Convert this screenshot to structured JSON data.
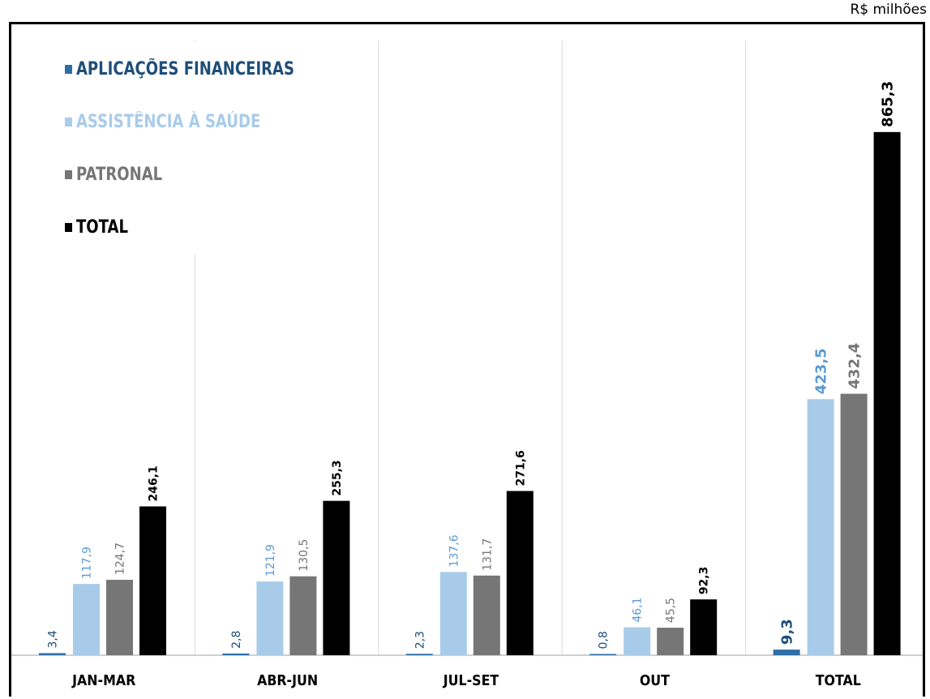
{
  "unit_label": "R$ milhões",
  "colors": {
    "aplicacoes": "#2e6ea6",
    "assistencia": "#a9cbea",
    "patronal": "#767676",
    "total": "#000000",
    "aplicacoes_text": "#1f4e79",
    "assistencia_text": "#5b9bd5",
    "patronal_text": "#767676",
    "total_text": "#000000"
  },
  "legend": [
    {
      "label": "APLICAÇÕES FINANCEIRAS",
      "color": "#1f4e79"
    },
    {
      "label": "ASSISTÊNCIA À SAÚDE",
      "color": "#a9cbea"
    },
    {
      "label": "PATRONAL",
      "color": "#767676"
    },
    {
      "label": "TOTAL",
      "color": "#000000"
    }
  ],
  "chart_data": {
    "type": "bar",
    "categories": [
      "JAN-MAR",
      "ABR-JUN",
      "JUL-SET",
      "OUT",
      "TOTAL"
    ],
    "series": [
      {
        "name": "APLICAÇÕES FINANCEIRAS",
        "values": [
          3.4,
          2.8,
          2.3,
          0.8,
          9.3
        ],
        "labels": [
          "3,4",
          "2,8",
          "2,3",
          "0,8",
          "9,3"
        ]
      },
      {
        "name": "ASSISTÊNCIA À SAÚDE",
        "values": [
          117.9,
          121.9,
          137.6,
          46.1,
          423.5
        ],
        "labels": [
          "117,9",
          "121,9",
          "137,6",
          "46,1",
          "423,5"
        ]
      },
      {
        "name": "PATRONAL",
        "values": [
          124.7,
          130.5,
          131.7,
          45.5,
          432.4
        ],
        "labels": [
          "124,7",
          "130,5",
          "131,7",
          "45,5",
          "432,4"
        ]
      },
      {
        "name": "TOTAL",
        "values": [
          246.1,
          255.3,
          271.6,
          92.3,
          865.3
        ],
        "labels": [
          "246,1",
          "255,3",
          "271,6",
          "92,3",
          "865,3"
        ]
      }
    ],
    "grid": true,
    "legend_position": "top-left"
  }
}
